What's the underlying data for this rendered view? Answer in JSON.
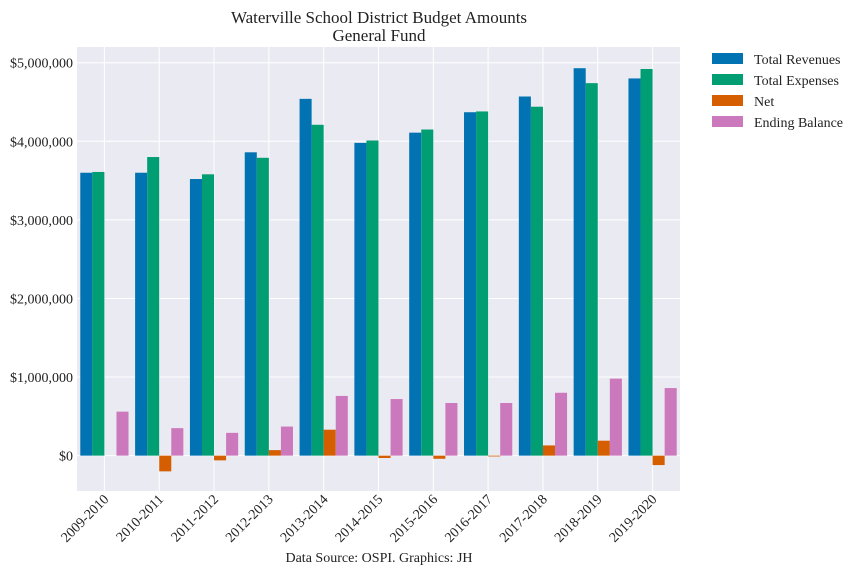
{
  "chart_data": {
    "type": "bar",
    "title": "Waterville School District Budget Amounts",
    "subtitle": "General Fund",
    "caption": "Data Source: OSPI. Graphics: JH",
    "xlabel": "",
    "ylabel": "",
    "categories": [
      "2009-2010",
      "2010-2011",
      "2011-2012",
      "2012-2013",
      "2013-2014",
      "2014-2015",
      "2015-2016",
      "2016-2017",
      "2017-2018",
      "2018-2019",
      "2019-2020"
    ],
    "ylim": [
      -450000,
      5200000
    ],
    "yticks": [
      0,
      1000000,
      2000000,
      3000000,
      4000000,
      5000000
    ],
    "ytick_labels": [
      "$0",
      "$1,000,000",
      "$2,000,000",
      "$3,000,000",
      "$4,000,000",
      "$5,000,000"
    ],
    "grid": true,
    "legend_position": "outside-top-right",
    "series": [
      {
        "name": "Total Revenues",
        "color": "#0173b2",
        "values": [
          3600000,
          3600000,
          3520000,
          3860000,
          4540000,
          3980000,
          4110000,
          4370000,
          4570000,
          4930000,
          4800000
        ]
      },
      {
        "name": "Total Expenses",
        "color": "#029e73",
        "values": [
          3610000,
          3800000,
          3580000,
          3790000,
          4210000,
          4010000,
          4150000,
          4380000,
          4440000,
          4740000,
          4920000
        ]
      },
      {
        "name": "Net",
        "color": "#d55e00",
        "values": [
          0,
          -200000,
          -60000,
          70000,
          330000,
          -30000,
          -40000,
          -10000,
          130000,
          190000,
          -120000
        ]
      },
      {
        "name": "Ending Balance",
        "color": "#cc78bc",
        "values": [
          560000,
          350000,
          290000,
          370000,
          760000,
          720000,
          670000,
          670000,
          800000,
          980000,
          860000
        ]
      }
    ]
  }
}
